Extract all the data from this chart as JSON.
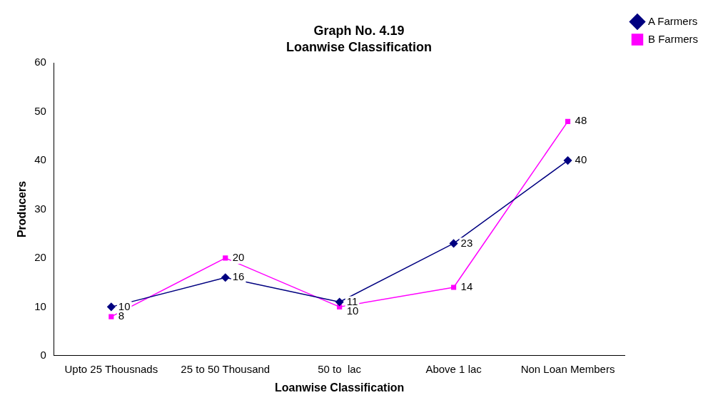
{
  "chart_data": {
    "type": "line",
    "title": "Graph No. 4.19",
    "subtitle": "Loanwise Classification",
    "xlabel": "Loanwise Classification",
    "ylabel": "Producers",
    "categories": [
      "Upto 25 Thousnads",
      "25 to 50 Thousand",
      "50 to  lac",
      "Above 1 lac",
      "Non Loan Members"
    ],
    "series": [
      {
        "name": "A Farmers",
        "color": "#000080",
        "marker": "diamond",
        "values": [
          10,
          16,
          11,
          23,
          40
        ]
      },
      {
        "name": "B Farmers",
        "color": "#ff00ff",
        "marker": "square",
        "values": [
          8,
          20,
          10,
          14,
          48
        ]
      }
    ],
    "ylim": [
      0,
      60
    ],
    "yticks": [
      0,
      10,
      20,
      30,
      40,
      50,
      60
    ],
    "grid": false,
    "legend": "top right",
    "data_labels": true,
    "line_style": "solid"
  }
}
